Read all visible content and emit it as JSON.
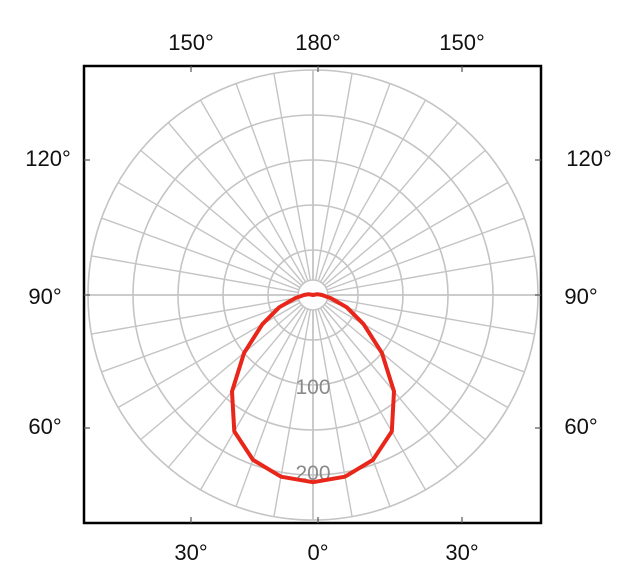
{
  "chart_data": {
    "type": "line",
    "subtype": "polar",
    "title": "",
    "angle_labels": {
      "top": [
        "150°",
        "180°",
        "150°"
      ],
      "left": [
        "120°",
        "90°",
        "60°"
      ],
      "right": [
        "120°",
        "90°",
        "60°"
      ],
      "bottom": [
        "30°",
        "0°",
        "30°"
      ]
    },
    "radial_tick_labels": [
      "100",
      "200"
    ],
    "radial_ticks": [
      100,
      200
    ],
    "r_max": 250,
    "grid": true,
    "angular_grid_step_deg": 10,
    "colors": {
      "grid": "#c4c4c4",
      "curve": "#e8261a",
      "frame": "#000000"
    },
    "series": [
      {
        "color": "#e8261a",
        "angles_deg": [
          -180,
          -170,
          -160,
          -150,
          -140,
          -130,
          -120,
          -110,
          -100,
          -90,
          -80,
          -70,
          -60,
          -50,
          -40,
          -30,
          -20,
          -10,
          0,
          10,
          20,
          30,
          40,
          50,
          60,
          70,
          80,
          90,
          100,
          110,
          120,
          130,
          140,
          150,
          160,
          170,
          180
        ],
        "r": [
          0,
          0,
          0,
          0,
          0,
          0,
          0,
          0,
          5,
          10,
          20,
          40,
          65,
          100,
          140,
          175,
          195,
          205,
          208,
          205,
          195,
          175,
          140,
          100,
          65,
          40,
          20,
          10,
          5,
          0,
          0,
          0,
          0,
          0,
          0,
          0,
          0
        ]
      }
    ]
  }
}
